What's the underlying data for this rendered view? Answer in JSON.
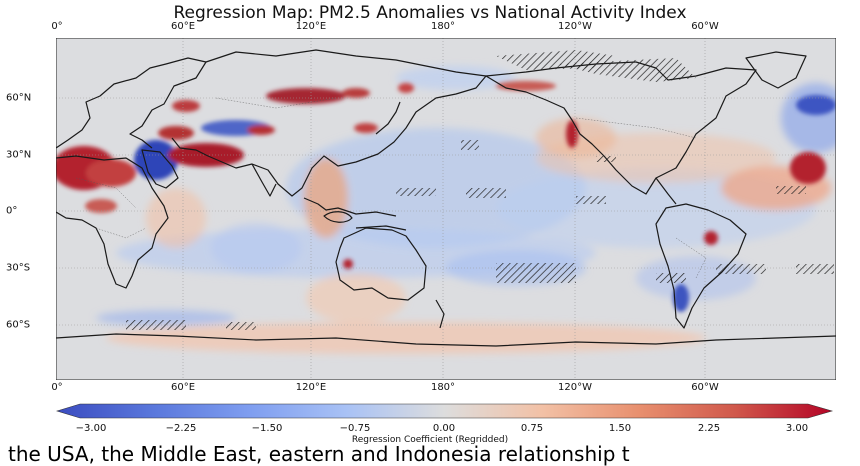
{
  "title": "Regression Map: PM2.5 Anomalies vs National Activity Index",
  "lon_ticks": [
    "0°",
    "60°E",
    "120°E",
    "180°",
    "120°W",
    "60°W"
  ],
  "lat_ticks": [
    "60°N",
    "30°N",
    "0°",
    "30°S",
    "60°S"
  ],
  "colorbar": {
    "label": "Regression Coefficient (Regridded)",
    "ticks": [
      "−3.00",
      "−2.25",
      "−1.50",
      "−0.75",
      "0.00",
      "0.75",
      "1.50",
      "2.25",
      "3.00"
    ],
    "range": [
      -3,
      3
    ],
    "colormap": "coolwarm",
    "colors": {
      "negative": "#3b4cc0",
      "neutral": "#dddddd",
      "positive": "#b40426"
    }
  },
  "caption": "the USA, the Middle East, eastern and Indonesia relationship t"
}
